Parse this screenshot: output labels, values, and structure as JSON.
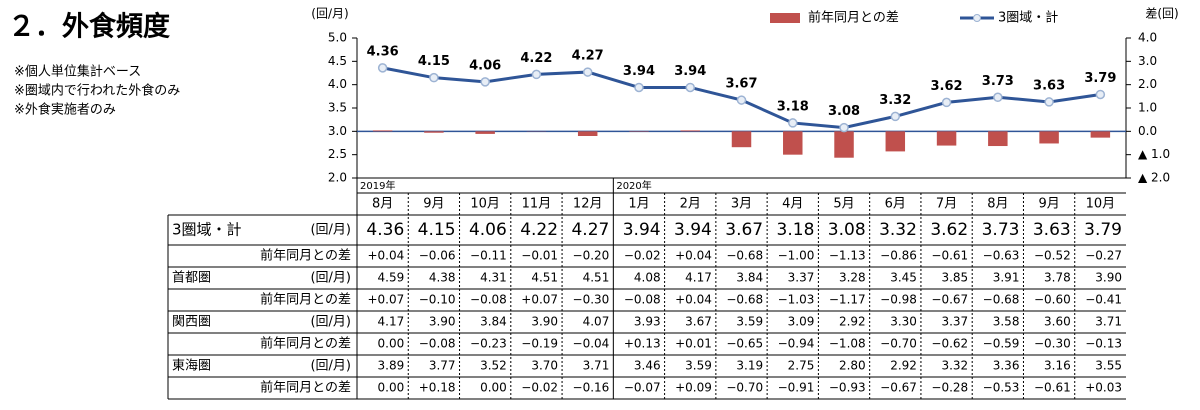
{
  "title": "２．外食頻度",
  "notes": [
    "※個人単位集計ベース",
    "※圏域内で行われた外食のみ",
    "※外食実施者のみ"
  ],
  "chart_data": {
    "type": "combo",
    "y_label": "(回/月)",
    "y2_label": "差(回)",
    "categories": [
      "8月",
      "9月",
      "10月",
      "11月",
      "12月",
      "1月",
      "2月",
      "3月",
      "4月",
      "5月",
      "6月",
      "7月",
      "8月",
      "9月",
      "10月"
    ],
    "year_labels": [
      "2019年",
      null,
      null,
      null,
      null,
      "2020年",
      null,
      null,
      null,
      null,
      null,
      null,
      null,
      null,
      null
    ],
    "ylim": [
      2,
      5
    ],
    "yticks": [
      {
        "value": 2,
        "label": "2.0"
      },
      {
        "value": 2.5,
        "label": "2.5"
      },
      {
        "value": 3,
        "label": "3.0"
      },
      {
        "value": 3.5,
        "label": "3.5"
      },
      {
        "value": 4,
        "label": "4.0"
      },
      {
        "value": 4.5,
        "label": "4.5"
      },
      {
        "value": 5,
        "label": "5.0"
      }
    ],
    "y2lim": [
      -2,
      4
    ],
    "y2ticks": [
      {
        "value": 4,
        "label": "4.0"
      },
      {
        "value": 3,
        "label": "3.0"
      },
      {
        "value": 2,
        "label": "2.0"
      },
      {
        "value": 1,
        "label": "1.0"
      },
      {
        "value": 0,
        "label": "0.0"
      },
      {
        "value": -1,
        "label": "▲ 1.0"
      },
      {
        "value": -2,
        "label": "▲ 2.0"
      }
    ],
    "legend": "top-right",
    "series": [
      {
        "name": "前年同月との差",
        "type": "bar",
        "axis": "y2",
        "color": "#c0504d",
        "values": [
          0.04,
          -0.06,
          -0.11,
          -0.01,
          -0.2,
          -0.02,
          0.04,
          -0.68,
          -1.0,
          -1.13,
          -0.86,
          -0.61,
          -0.63,
          -0.52,
          -0.27
        ],
        "value_labels": [
          "+0.04",
          "−0.06",
          "−0.11",
          "−0.01",
          "−0.20",
          "−0.02",
          "+0.04",
          "−0.68",
          "−1.00",
          "−1.13",
          "−0.86",
          "−0.61",
          "−0.63",
          "−0.52",
          "−0.27"
        ]
      },
      {
        "name": "3圏域・計",
        "type": "line",
        "color": "#2f5597",
        "values": [
          4.36,
          4.15,
          4.06,
          4.22,
          4.27,
          3.94,
          3.94,
          3.67,
          3.18,
          3.08,
          3.32,
          3.62,
          3.73,
          3.63,
          3.79
        ]
      }
    ]
  },
  "table": {
    "rows": [
      {
        "name": "首都圏",
        "values": [
          "4.59",
          "4.38",
          "4.31",
          "4.51",
          "4.51",
          "4.08",
          "4.17",
          "3.84",
          "3.37",
          "3.28",
          "3.45",
          "3.85",
          "3.91",
          "3.78",
          "3.90"
        ],
        "diffs": [
          "+0.07",
          "−0.10",
          "−0.08",
          "+0.07",
          "−0.30",
          "−0.08",
          "+0.04",
          "−0.68",
          "−1.03",
          "−1.17",
          "−0.98",
          "−0.67",
          "−0.68",
          "−0.60",
          "−0.41"
        ]
      },
      {
        "name": "関西圏",
        "values": [
          "4.17",
          "3.90",
          "3.84",
          "3.90",
          "4.07",
          "3.93",
          "3.67",
          "3.59",
          "3.09",
          "2.92",
          "3.30",
          "3.37",
          "3.58",
          "3.60",
          "3.71"
        ],
        "diffs": [
          "0.00",
          "−0.08",
          "−0.23",
          "−0.19",
          "−0.04",
          "+0.13",
          "+0.01",
          "−0.65",
          "−0.94",
          "−1.08",
          "−0.70",
          "−0.62",
          "−0.59",
          "−0.30",
          "−0.13"
        ]
      },
      {
        "name": "東海圏",
        "values": [
          "3.89",
          "3.77",
          "3.52",
          "3.70",
          "3.71",
          "3.46",
          "3.59",
          "3.19",
          "2.75",
          "2.80",
          "2.92",
          "3.32",
          "3.36",
          "3.16",
          "3.55"
        ],
        "diffs": [
          "0.00",
          "+0.18",
          "0.00",
          "−0.02",
          "−0.16",
          "−0.07",
          "+0.09",
          "−0.70",
          "−0.91",
          "−0.93",
          "−0.67",
          "−0.28",
          "−0.53",
          "−0.61",
          "+0.03"
        ]
      }
    ]
  }
}
